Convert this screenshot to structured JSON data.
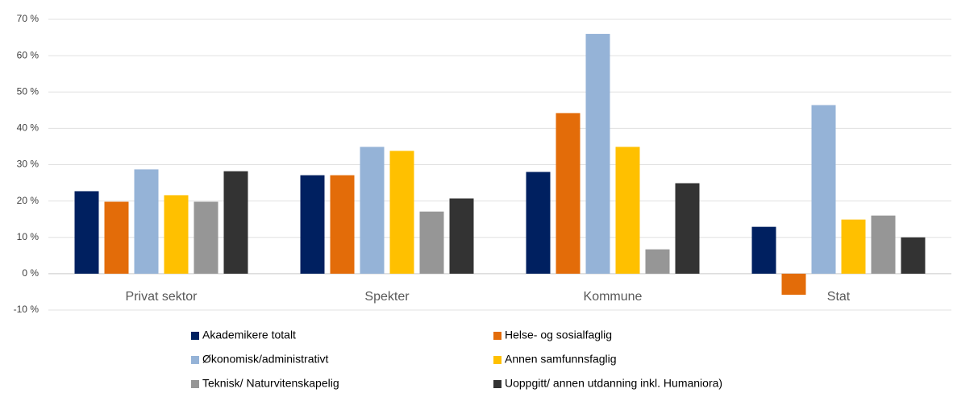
{
  "chart_data": {
    "type": "bar",
    "categories": [
      "Privat sektor",
      "Spekter",
      "Kommune",
      "Stat"
    ],
    "series": [
      {
        "name": "Akademikere totalt",
        "color": "#002060",
        "values": [
          22.7,
          27.1,
          28.0,
          12.9
        ]
      },
      {
        "name": "Helse- og sosialfaglig",
        "color": "#e36c09",
        "values": [
          19.8,
          27.1,
          44.2,
          -5.8
        ]
      },
      {
        "name": "Økonomisk/administrativt",
        "color": "#95b3d7",
        "values": [
          28.7,
          34.9,
          66.0,
          46.4
        ]
      },
      {
        "name": "Annen samfunnsfaglig",
        "color": "#ffc000",
        "values": [
          21.6,
          33.8,
          34.9,
          14.9
        ]
      },
      {
        "name": "Teknisk/ Naturvitenskapelig",
        "color": "#969696",
        "values": [
          19.8,
          17.1,
          6.7,
          16.0
        ]
      },
      {
        "name": "Uoppgitt/ annen utdanning inkl. Humaniora)",
        "color": "#333333",
        "values": [
          28.2,
          20.7,
          24.9,
          10.0
        ]
      }
    ],
    "ylim": [
      -10,
      70
    ],
    "yticks": [
      {
        "value": -10,
        "label": "-10 %"
      },
      {
        "value": 0,
        "label": "0 %"
      },
      {
        "value": 10,
        "label": "10 %"
      },
      {
        "value": 20,
        "label": "20 %"
      },
      {
        "value": 30,
        "label": "30 %"
      },
      {
        "value": 40,
        "label": "40 %"
      },
      {
        "value": 50,
        "label": "50 %"
      },
      {
        "value": 60,
        "label": "60 %"
      },
      {
        "value": 70,
        "label": "70 %"
      }
    ],
    "grid": true,
    "legend": "bottom"
  }
}
